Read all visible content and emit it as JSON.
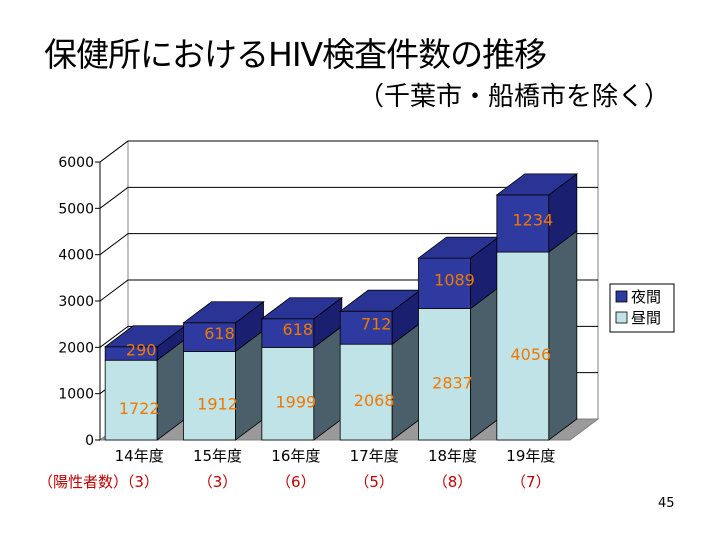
{
  "header": {
    "title": "保健所におけるHIV検査件数の推移",
    "subtitle": "（千葉市・船橋市を除く）"
  },
  "footer": {
    "page_number": "45"
  },
  "chart_data": {
    "type": "bar",
    "stacked": true,
    "three_d": true,
    "categories": [
      "14年度",
      "15年度",
      "16年度",
      "17年度",
      "18年度",
      "19年度"
    ],
    "series": [
      {
        "name": "昼間",
        "values": [
          1722,
          1912,
          1999,
          2068,
          2837,
          4056
        ],
        "color": "#bfe3e6",
        "side_color": "#4b5f6a"
      },
      {
        "name": "夜間",
        "values": [
          290,
          618,
          618,
          712,
          1089,
          1234
        ],
        "color": "#2f3aa0",
        "side_color": "#1a1f70"
      }
    ],
    "ylim": [
      0,
      6000
    ],
    "yticks": [
      "0",
      "1000",
      "2000",
      "3000",
      "4000",
      "5000",
      "6000"
    ],
    "grid": true,
    "legend": "right",
    "row_label": "（陽性者数）",
    "positives": [
      "（3）",
      "（3）",
      "（6）",
      "（5）",
      "（8）",
      "（7）"
    ]
  }
}
